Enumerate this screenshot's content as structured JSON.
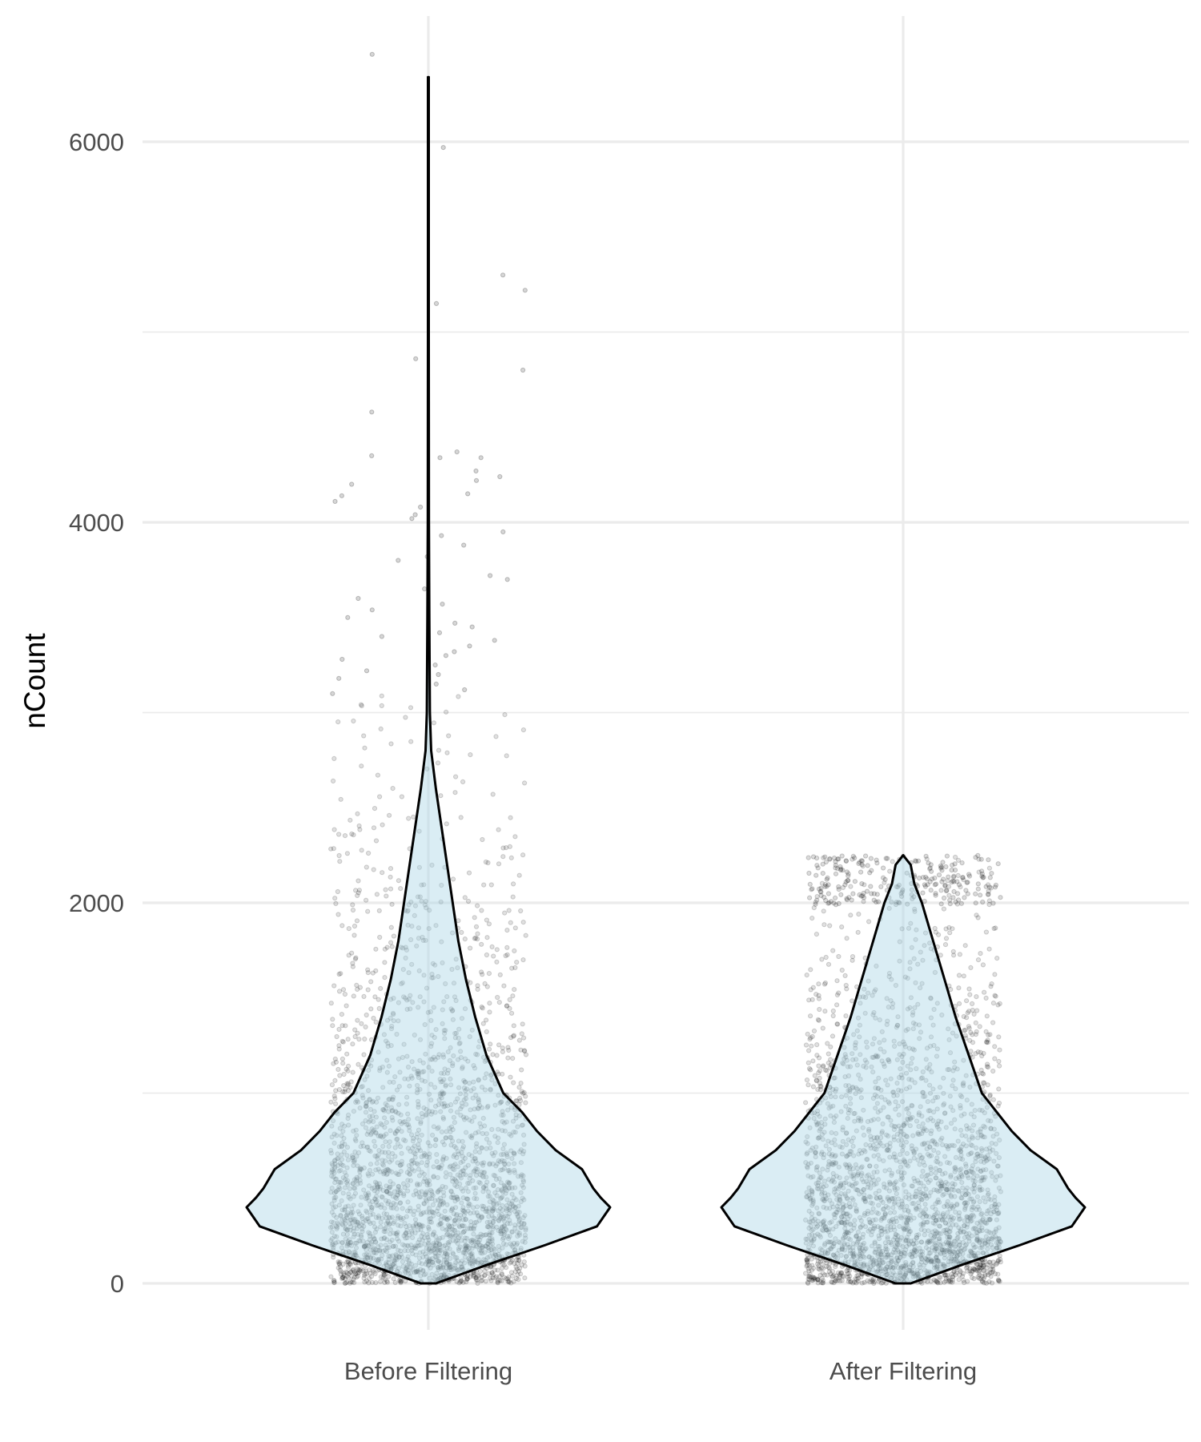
{
  "chart_data": {
    "type": "violin",
    "categories": [
      "Before Filtering",
      "After Filtering"
    ],
    "xlabel": "",
    "ylabel": "nCount",
    "ylim": [
      -100,
      6450
    ],
    "y_ticks": [
      0,
      2000,
      4000,
      6000
    ],
    "y_minor_ticks": [
      1000,
      3000,
      5000
    ],
    "grid": true,
    "legend": "none",
    "colors": {
      "violin_fill": "#add8e6",
      "violin_stroke": "#000000",
      "points": "#000000"
    },
    "violins": [
      {
        "category": "Before Filtering",
        "min": 0,
        "max": 6340,
        "profile": [
          [
            0,
            0.04
          ],
          [
            100,
            0.32
          ],
          [
            200,
            0.62
          ],
          [
            300,
            0.9
          ],
          [
            400,
            0.97
          ],
          [
            450,
            0.92
          ],
          [
            500,
            0.88
          ],
          [
            600,
            0.82
          ],
          [
            700,
            0.68
          ],
          [
            800,
            0.58
          ],
          [
            900,
            0.5
          ],
          [
            1000,
            0.4
          ],
          [
            1200,
            0.31
          ],
          [
            1400,
            0.25
          ],
          [
            1600,
            0.2
          ],
          [
            1800,
            0.16
          ],
          [
            2000,
            0.13
          ],
          [
            2200,
            0.1
          ],
          [
            2400,
            0.07
          ],
          [
            2600,
            0.04
          ],
          [
            2800,
            0.015
          ],
          [
            3000,
            0.008
          ],
          [
            3500,
            0.005
          ],
          [
            4000,
            0.003
          ],
          [
            5000,
            0.002
          ],
          [
            6340,
            0.002
          ]
        ]
      },
      {
        "category": "After Filtering",
        "min": 0,
        "max": 2250,
        "profile": [
          [
            0,
            0.04
          ],
          [
            100,
            0.32
          ],
          [
            200,
            0.62
          ],
          [
            300,
            0.9
          ],
          [
            400,
            0.97
          ],
          [
            450,
            0.92
          ],
          [
            500,
            0.88
          ],
          [
            600,
            0.82
          ],
          [
            700,
            0.68
          ],
          [
            800,
            0.58
          ],
          [
            900,
            0.5
          ],
          [
            1000,
            0.42
          ],
          [
            1200,
            0.35
          ],
          [
            1400,
            0.28
          ],
          [
            1600,
            0.22
          ],
          [
            1800,
            0.16
          ],
          [
            2000,
            0.1
          ],
          [
            2100,
            0.06
          ],
          [
            2200,
            0.04
          ],
          [
            2250,
            0.0
          ]
        ]
      }
    ],
    "points": {
      "jitter": true,
      "before_outliers": [
        6460,
        5970,
        5300,
        5220,
        5150,
        4860,
        4800,
        4580,
        4370,
        4350,
        4340,
        4340,
        4270,
        4240,
        4220,
        4200,
        4150,
        4140,
        4110,
        4080,
        4040,
        4020,
        3950,
        3930,
        3880,
        3820,
        3800,
        3720,
        3700,
        3650,
        3600,
        3570,
        3540,
        3500,
        3470,
        3450,
        3420,
        3400,
        3380,
        3350,
        3320,
        3300,
        3280,
        3250,
        3220,
        3200,
        3180,
        3150,
        3120,
        3100
      ],
      "after_max": 2250
    }
  }
}
